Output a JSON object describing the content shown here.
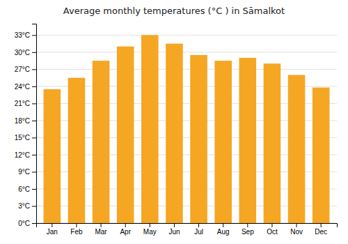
{
  "chart_data": {
    "type": "bar",
    "title": "Average monthly temperatures (°C ) in Sāmalkot",
    "categories": [
      "Jan",
      "Feb",
      "Mar",
      "Apr",
      "May",
      "Jun",
      "Jul",
      "Aug",
      "Sep",
      "Oct",
      "Nov",
      "Dec"
    ],
    "values": [
      23.5,
      25.5,
      28.5,
      31.0,
      33.0,
      31.5,
      29.5,
      28.5,
      29.0,
      28.0,
      26.0,
      23.8
    ],
    "color": "#F5A623",
    "ylim": [
      0,
      35
    ],
    "yticks": [
      {
        "value": 0,
        "label": "0°C"
      },
      {
        "value": 3,
        "label": "3°C"
      },
      {
        "value": 6,
        "label": "6°C"
      },
      {
        "value": 9,
        "label": "9°C"
      },
      {
        "value": 12,
        "label": "12°C"
      },
      {
        "value": 15,
        "label": "15°C"
      },
      {
        "value": 18,
        "label": "18°C"
      },
      {
        "value": 21,
        "label": "21°C"
      },
      {
        "value": 24,
        "label": "24°C"
      },
      {
        "value": 27,
        "label": "27°C"
      },
      {
        "value": 30,
        "label": "30°C"
      },
      {
        "value": 33,
        "label": "33°C"
      }
    ],
    "grid": true
  }
}
